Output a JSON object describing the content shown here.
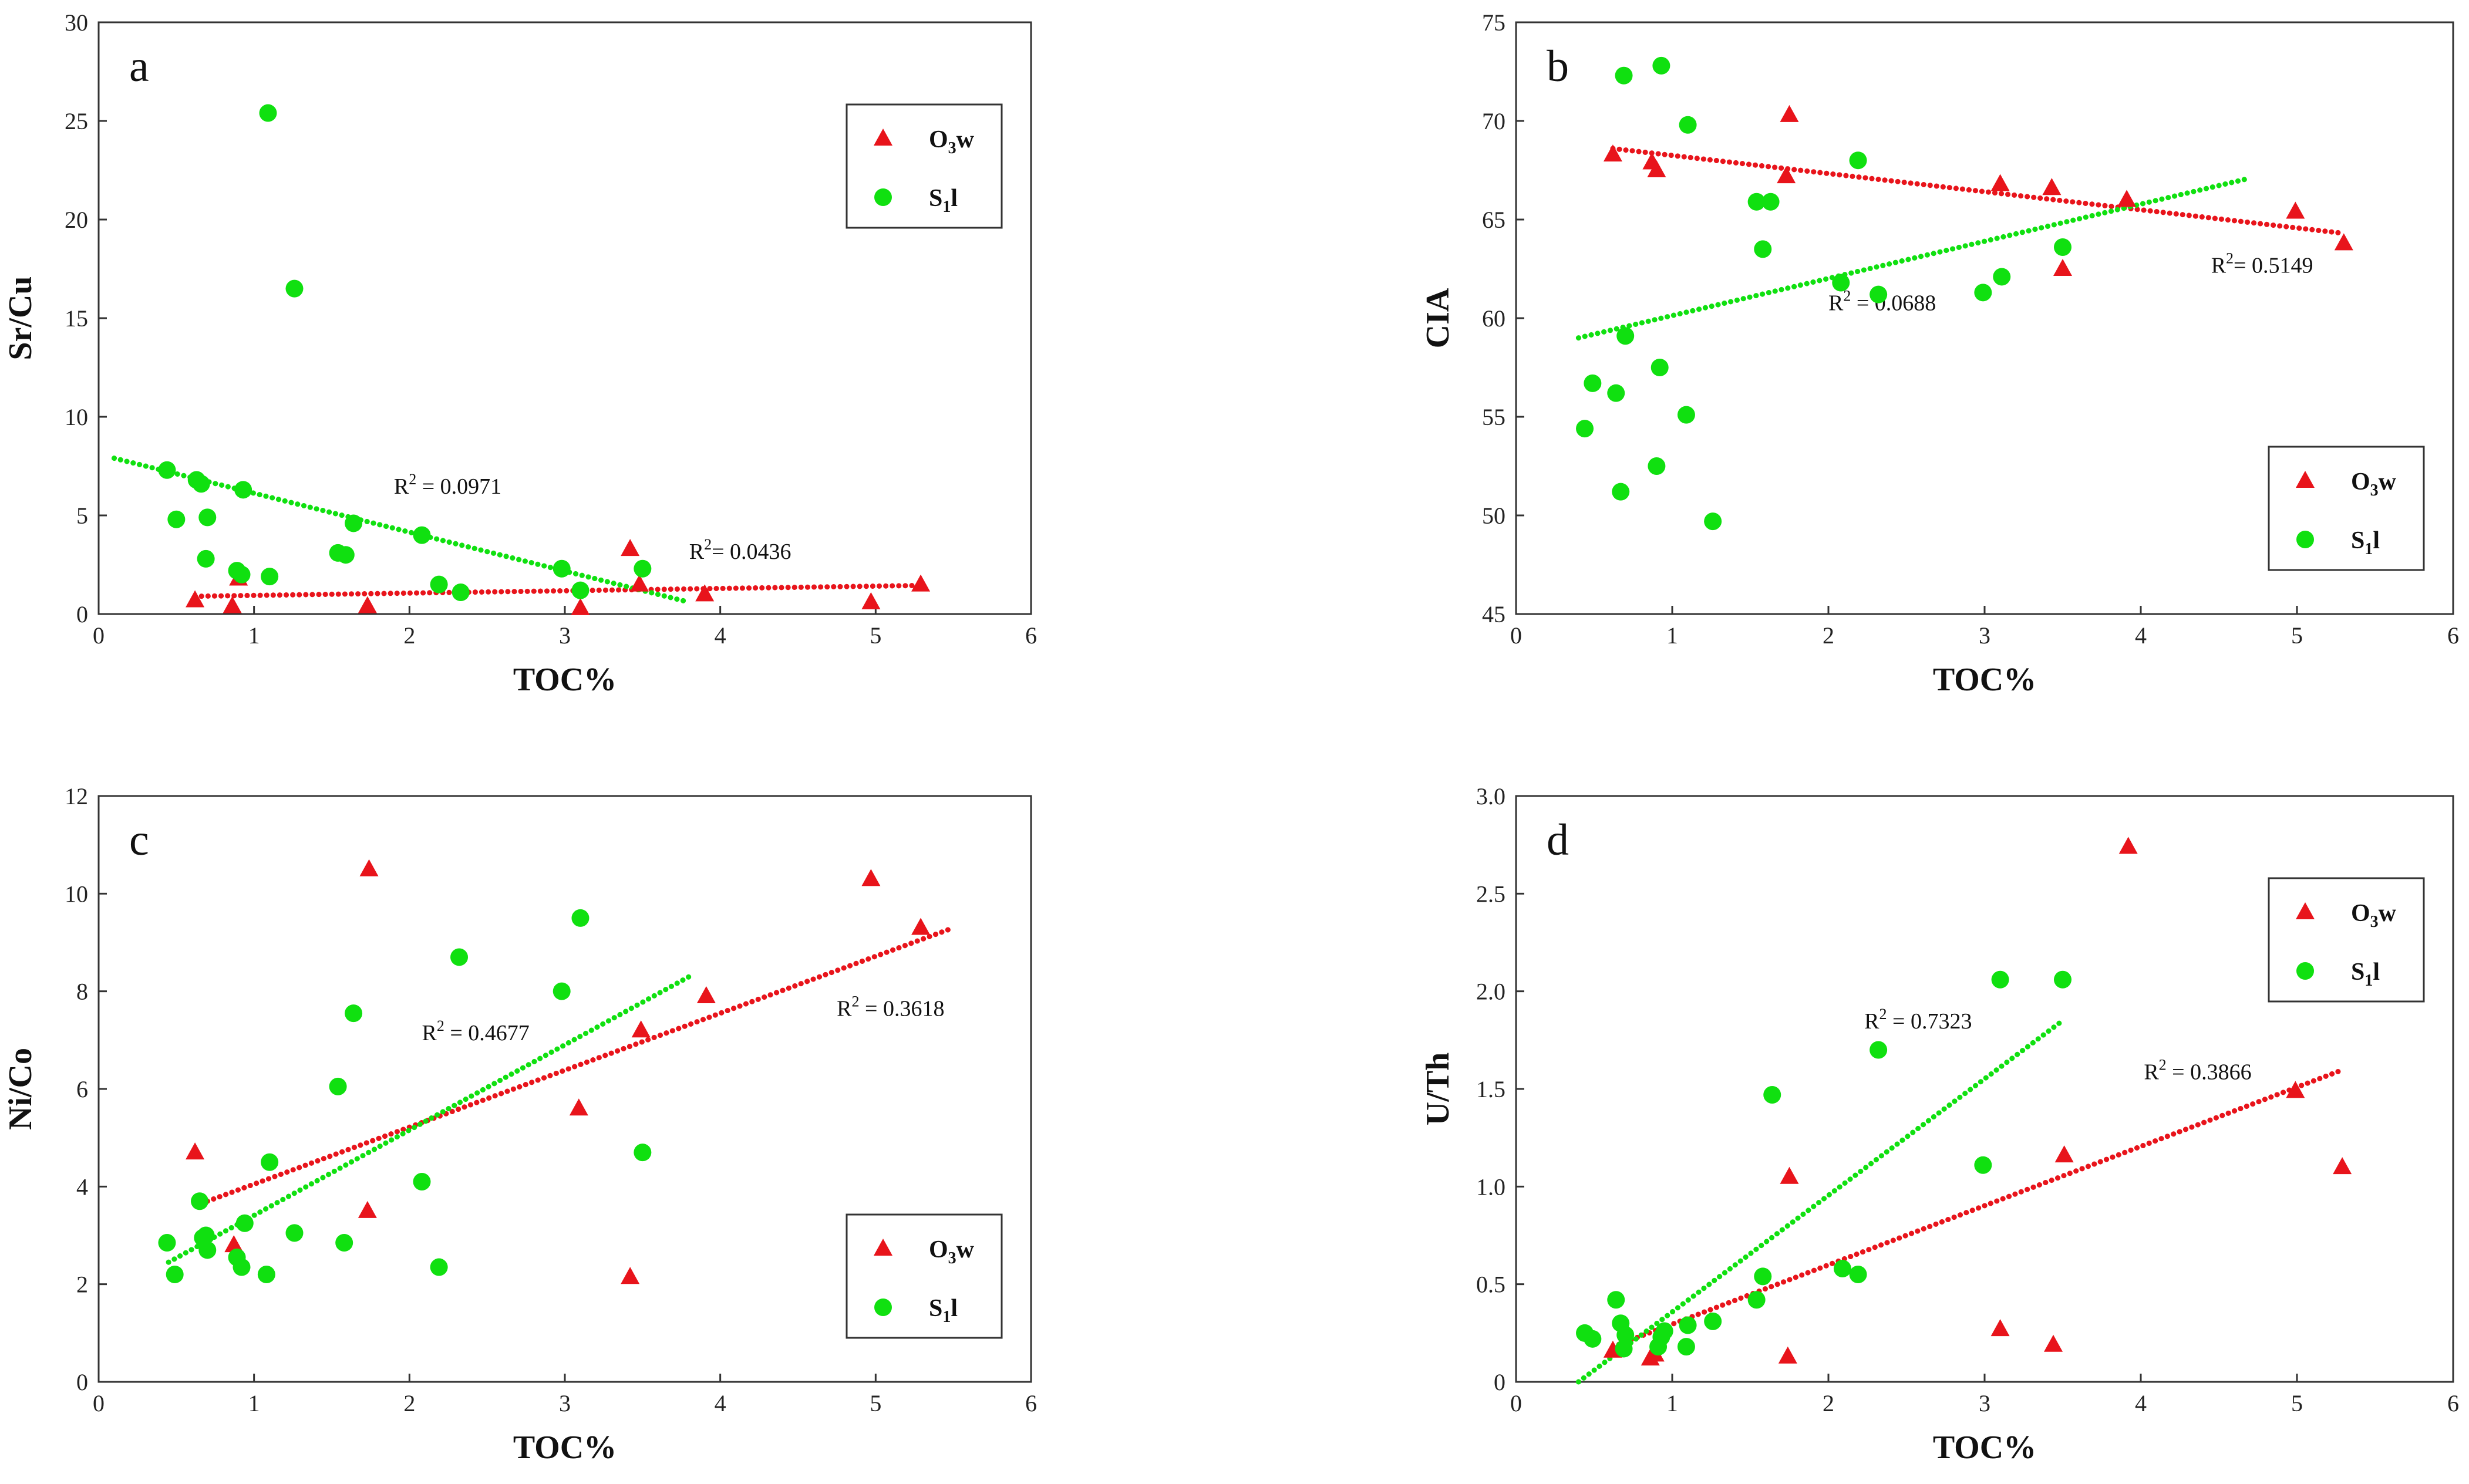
{
  "colors": {
    "O3w": "#e8141b",
    "S1l": "#10e010"
  },
  "chart_data": [
    {
      "type": "scatter",
      "panel_label": "a",
      "xlabel": "TOC%",
      "ylabel": "Sr/Cu",
      "xlim": [
        0,
        6
      ],
      "ylim": [
        0,
        30
      ],
      "xticks": [
        "0",
        "1",
        "2",
        "3",
        "4",
        "5",
        "6"
      ],
      "yticks": [
        "0",
        "5",
        "10",
        "15",
        "20",
        "25",
        "30"
      ],
      "series": [
        {
          "key": "O3w",
          "marker": "triangle",
          "points": [
            [
              0.62,
              0.7
            ],
            [
              0.86,
              0.4
            ],
            [
              0.9,
              1.8
            ],
            [
              1.73,
              0.4
            ],
            [
              3.1,
              0.3
            ],
            [
              3.42,
              3.3
            ],
            [
              3.48,
              1.5
            ],
            [
              3.9,
              1.0
            ],
            [
              4.97,
              0.6
            ],
            [
              5.29,
              1.5
            ]
          ]
        },
        {
          "key": "S1l",
          "marker": "circle",
          "points": [
            [
              0.44,
              7.3
            ],
            [
              0.5,
              4.8
            ],
            [
              0.63,
              6.8
            ],
            [
              0.66,
              6.6
            ],
            [
              0.69,
              2.8
            ],
            [
              0.7,
              4.9
            ],
            [
              0.89,
              2.2
            ],
            [
              0.92,
              2.0
            ],
            [
              0.93,
              6.3
            ],
            [
              1.09,
              25.4
            ],
            [
              1.1,
              1.9
            ],
            [
              1.26,
              16.5
            ],
            [
              1.54,
              3.1
            ],
            [
              1.59,
              3.0
            ],
            [
              1.64,
              4.6
            ],
            [
              2.08,
              4.0
            ],
            [
              2.19,
              1.5
            ],
            [
              2.33,
              1.1
            ],
            [
              2.98,
              2.3
            ],
            [
              3.1,
              1.2
            ],
            [
              3.5,
              2.3
            ]
          ]
        }
      ],
      "trendlines": [
        {
          "key": "O3w",
          "x": [
            0.62,
            5.3
          ],
          "y": [
            0.9,
            1.45
          ],
          "r2_label": "R",
          "r2_sup": "2",
          "r2_value": "= 0.0436",
          "label_at": [
            3.8,
            2.8
          ]
        },
        {
          "key": "S1l",
          "x": [
            0.1,
            3.8
          ],
          "y": [
            7.9,
            0.6
          ],
          "r2_label": "R",
          "r2_sup": "2",
          "r2_value": " = 0.0971",
          "label_at": [
            1.9,
            6.1
          ]
        }
      ],
      "legend": {
        "position": "top-right",
        "entries": [
          {
            "key": "O3w",
            "main": "O",
            "sub": "3",
            "rest": "w"
          },
          {
            "key": "S1l",
            "main": "S",
            "sub": "1",
            "rest": "l"
          }
        ]
      }
    },
    {
      "type": "scatter",
      "panel_label": "b",
      "xlabel": "TOC%",
      "ylabel": "CIA",
      "xlim": [
        0,
        6
      ],
      "ylim": [
        45,
        75
      ],
      "xticks": [
        "0",
        "1",
        "2",
        "3",
        "4",
        "5",
        "6"
      ],
      "yticks": [
        "45",
        "50",
        "55",
        "60",
        "65",
        "70",
        "75"
      ],
      "series": [
        {
          "key": "O3w",
          "marker": "triangle",
          "points": [
            [
              0.62,
              68.3
            ],
            [
              0.87,
              67.9
            ],
            [
              0.9,
              67.5
            ],
            [
              1.73,
              67.2
            ],
            [
              1.75,
              70.3
            ],
            [
              3.1,
              66.8
            ],
            [
              3.43,
              66.6
            ],
            [
              3.5,
              62.5
            ],
            [
              3.91,
              66.0
            ],
            [
              4.99,
              65.4
            ],
            [
              5.3,
              63.8
            ]
          ]
        },
        {
          "key": "S1l",
          "marker": "circle",
          "points": [
            [
              0.44,
              54.4
            ],
            [
              0.49,
              56.7
            ],
            [
              0.64,
              56.2
            ],
            [
              0.67,
              51.2
            ],
            [
              0.69,
              72.3
            ],
            [
              0.7,
              59.1
            ],
            [
              0.9,
              52.5
            ],
            [
              0.92,
              57.5
            ],
            [
              0.93,
              72.8
            ],
            [
              1.09,
              55.1
            ],
            [
              1.1,
              69.8
            ],
            [
              1.26,
              49.7
            ],
            [
              1.54,
              65.9
            ],
            [
              1.58,
              63.5
            ],
            [
              1.63,
              65.9
            ],
            [
              2.08,
              61.8
            ],
            [
              2.19,
              68.0
            ],
            [
              2.32,
              61.2
            ],
            [
              2.99,
              61.3
            ],
            [
              3.11,
              62.1
            ],
            [
              3.5,
              63.6
            ]
          ]
        }
      ],
      "trendlines": [
        {
          "key": "O3w",
          "x": [
            0.62,
            5.3
          ],
          "y": [
            68.6,
            64.3
          ],
          "r2_label": "R",
          "r2_sup": "2",
          "r2_value": "= 0.5149",
          "label_at": [
            4.45,
            62.3
          ]
        },
        {
          "key": "S1l",
          "x": [
            0.4,
            4.7
          ],
          "y": [
            59.0,
            67.1
          ],
          "r2_label": "R",
          "r2_sup": "2",
          "r2_value": " = 0.0688",
          "label_at": [
            2.0,
            60.4
          ]
        }
      ],
      "legend": {
        "position": "bottom-right",
        "entries": [
          {
            "key": "O3w",
            "main": "O",
            "sub": "3",
            "rest": "w"
          },
          {
            "key": "S1l",
            "main": "S",
            "sub": "1",
            "rest": "l"
          }
        ]
      }
    },
    {
      "type": "scatter",
      "panel_label": "c",
      "xlabel": "TOC%",
      "ylabel": "Ni/Co",
      "xlim": [
        0,
        6
      ],
      "ylim": [
        0,
        12
      ],
      "xticks": [
        "0",
        "1",
        "2",
        "3",
        "4",
        "5",
        "6"
      ],
      "yticks": [
        "0",
        "2",
        "4",
        "6",
        "8",
        "10",
        "12"
      ],
      "series": [
        {
          "key": "O3w",
          "marker": "triangle",
          "points": [
            [
              0.62,
              4.7
            ],
            [
              0.87,
              2.8
            ],
            [
              1.73,
              3.5
            ],
            [
              1.74,
              10.5
            ],
            [
              3.09,
              5.6
            ],
            [
              3.42,
              2.15
            ],
            [
              3.49,
              7.2
            ],
            [
              3.91,
              7.9
            ],
            [
              4.97,
              10.3
            ],
            [
              5.29,
              9.3
            ]
          ]
        },
        {
          "key": "S1l",
          "marker": "circle",
          "points": [
            [
              0.44,
              2.85
            ],
            [
              0.49,
              2.2
            ],
            [
              0.65,
              3.7
            ],
            [
              0.67,
              2.95
            ],
            [
              0.69,
              3.0
            ],
            [
              0.7,
              2.7
            ],
            [
              0.89,
              2.55
            ],
            [
              0.92,
              2.35
            ],
            [
              0.94,
              3.25
            ],
            [
              1.08,
              2.2
            ],
            [
              1.1,
              4.5
            ],
            [
              1.26,
              3.05
            ],
            [
              1.54,
              6.05
            ],
            [
              1.58,
              2.85
            ],
            [
              1.64,
              7.55
            ],
            [
              2.08,
              4.1
            ],
            [
              2.19,
              2.35
            ],
            [
              2.32,
              8.7
            ],
            [
              2.98,
              8.0
            ],
            [
              3.1,
              9.5
            ],
            [
              3.5,
              4.7
            ]
          ]
        }
      ],
      "trendlines": [
        {
          "key": "O3w",
          "x": [
            0.7,
            5.5
          ],
          "y": [
            3.7,
            9.3
          ],
          "r2_label": "R",
          "r2_sup": "2",
          "r2_value": " = 0.3618",
          "label_at": [
            4.75,
            7.5
          ]
        },
        {
          "key": "S1l",
          "x": [
            0.45,
            3.8
          ],
          "y": [
            2.45,
            8.3
          ],
          "r2_label": "R",
          "r2_sup": "2",
          "r2_value": " = 0.4677",
          "label_at": [
            2.08,
            7.0
          ]
        }
      ],
      "legend": {
        "position": "bottom-right",
        "entries": [
          {
            "key": "O3w",
            "main": "O",
            "sub": "3",
            "rest": "w"
          },
          {
            "key": "S1l",
            "main": "S",
            "sub": "1",
            "rest": "l"
          }
        ]
      }
    },
    {
      "type": "scatter",
      "panel_label": "d",
      "xlabel": "TOC%",
      "ylabel": "U/Th",
      "xlim": [
        0,
        6
      ],
      "ylim": [
        0,
        3.0
      ],
      "xticks": [
        "0",
        "1",
        "2",
        "3",
        "4",
        "5",
        "6"
      ],
      "yticks": [
        "0",
        "0.5",
        "1.0",
        "1.5",
        "2.0",
        "2.5",
        "3.0"
      ],
      "series": [
        {
          "key": "O3w",
          "marker": "triangle",
          "points": [
            [
              0.62,
              0.16
            ],
            [
              0.86,
              0.12
            ],
            [
              0.89,
              0.14
            ],
            [
              1.74,
              0.13
            ],
            [
              1.75,
              1.05
            ],
            [
              3.1,
              0.27
            ],
            [
              3.44,
              0.19
            ],
            [
              3.51,
              1.16
            ],
            [
              3.92,
              2.74
            ],
            [
              4.99,
              1.49
            ],
            [
              5.29,
              1.1
            ]
          ]
        },
        {
          "key": "S1l",
          "marker": "circle",
          "points": [
            [
              0.44,
              0.25
            ],
            [
              0.49,
              0.22
            ],
            [
              0.64,
              0.42
            ],
            [
              0.67,
              0.3
            ],
            [
              0.69,
              0.17
            ],
            [
              0.7,
              0.24
            ],
            [
              0.91,
              0.18
            ],
            [
              0.93,
              0.23
            ],
            [
              0.95,
              0.26
            ],
            [
              1.09,
              0.18
            ],
            [
              1.1,
              0.29
            ],
            [
              1.26,
              0.31
            ],
            [
              1.54,
              0.42
            ],
            [
              1.58,
              0.54
            ],
            [
              1.64,
              1.47
            ],
            [
              2.09,
              0.58
            ],
            [
              2.19,
              0.55
            ],
            [
              2.32,
              1.7
            ],
            [
              2.99,
              1.11
            ],
            [
              3.1,
              2.06
            ],
            [
              3.5,
              2.06
            ]
          ]
        }
      ],
      "trendlines": [
        {
          "key": "O3w",
          "x": [
            0.62,
            5.3
          ],
          "y": [
            0.18,
            1.6
          ],
          "r2_label": "R",
          "r2_sup": "2",
          "r2_value": " = 0.3866",
          "label_at": [
            4.02,
            1.55
          ]
        },
        {
          "key": "S1l",
          "x": [
            0.4,
            3.5
          ],
          "y": [
            0.0,
            1.85
          ],
          "r2_label": "R",
          "r2_sup": "2",
          "r2_value": " = 0.7323",
          "label_at": [
            2.23,
            1.81
          ]
        }
      ],
      "legend": {
        "position": "top-right",
        "entries": [
          {
            "key": "O3w",
            "main": "O",
            "sub": "3",
            "rest": "w"
          },
          {
            "key": "S1l",
            "main": "S",
            "sub": "1",
            "rest": "l"
          }
        ]
      }
    }
  ]
}
